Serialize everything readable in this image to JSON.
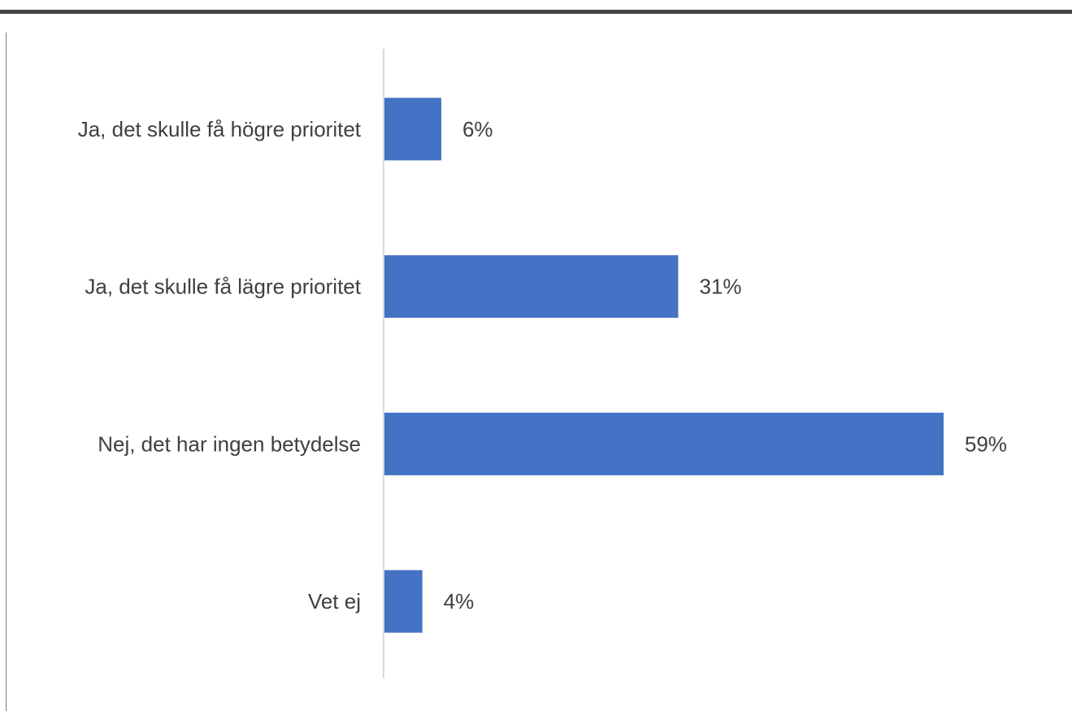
{
  "chart_data": {
    "type": "bar",
    "orientation": "horizontal",
    "categories": [
      "Ja, det skulle få högre prioritet",
      "Ja, det skulle få lägre prioritet",
      "Nej, det har ingen betydelse",
      "Vet ej"
    ],
    "values": [
      6,
      31,
      59,
      4
    ],
    "data_labels": [
      "6%",
      "31%",
      "59%",
      "4%"
    ],
    "unit": "%",
    "xlim": [
      0,
      68
    ],
    "grid": false,
    "legend": "none",
    "title": "",
    "xlabel": "",
    "ylabel": "",
    "colors": {
      "bar": "#4472C4",
      "axis": "#D9D9D9",
      "text": "#404040"
    }
  }
}
